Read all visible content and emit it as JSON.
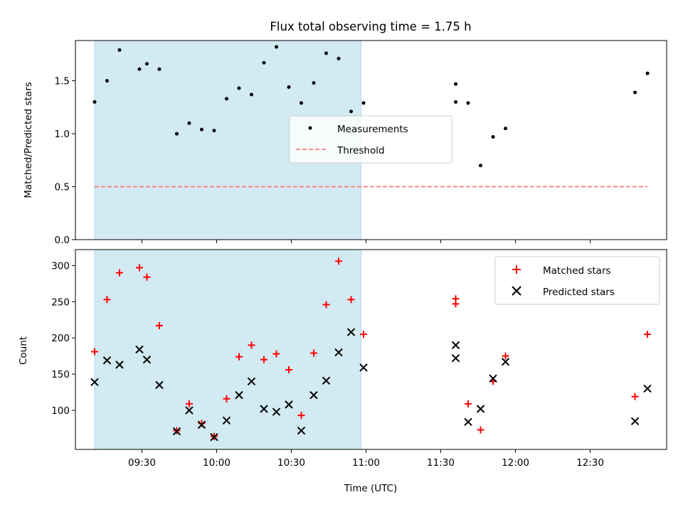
{
  "chart_data": {
    "title": "Flux total observing time = 1.75 h",
    "xlabel": "Time (UTC)",
    "x_ticks": [
      "09:30",
      "10:00",
      "10:30",
      "11:00",
      "11:30",
      "12:00",
      "12:30"
    ],
    "x_units": "minutes since 09:00 UTC (tick 09:30 = 30)",
    "shaded_interval": [
      "09:11",
      "10:58"
    ],
    "shade_color": "#add8e6",
    "charts": [
      {
        "type": "scatter",
        "ylabel": "Matched/Predicted stars",
        "ylim": [
          0,
          1.88
        ],
        "y_ticks": [
          "0.0",
          "0.5",
          "1.0",
          "1.5"
        ],
        "legend": {
          "placement": "center",
          "entries": [
            "Measurements",
            "Threshold"
          ]
        },
        "series": [
          {
            "name": "Measurements",
            "marker": "dot",
            "color": "#000000",
            "x": [
              11,
              16,
              21,
              29,
              32,
              37,
              44,
              49,
              54,
              59,
              64,
              69,
              74,
              79,
              84,
              89,
              94,
              99,
              104,
              109,
              114,
              119,
              156,
              156,
              161,
              166,
              171,
              176,
              228,
              233
            ],
            "y": [
              1.3,
              1.5,
              1.79,
              1.61,
              1.66,
              1.61,
              1.0,
              1.1,
              1.04,
              1.03,
              1.33,
              1.43,
              1.37,
              1.67,
              1.82,
              1.44,
              1.29,
              1.48,
              1.76,
              1.71,
              1.21,
              1.29,
              1.47,
              1.3,
              1.29,
              0.7,
              0.97,
              1.05,
              1.39,
              1.57
            ]
          },
          {
            "name": "Threshold",
            "line": "dashed",
            "color": "#ff7777",
            "x": [
              11,
              233
            ],
            "y": [
              0.5,
              0.5
            ]
          }
        ]
      },
      {
        "type": "scatter",
        "ylabel": "Count",
        "ylim": [
          46,
          322
        ],
        "y_ticks": [
          "100",
          "150",
          "200",
          "250",
          "300"
        ],
        "legend": {
          "placement": "top-right",
          "entries": [
            "Matched stars",
            "Predicted stars"
          ]
        },
        "series": [
          {
            "name": "Matched stars",
            "marker": "plus",
            "color": "#ff0000",
            "x": [
              11,
              16,
              21,
              29,
              32,
              37,
              44,
              49,
              54,
              59,
              64,
              69,
              74,
              79,
              84,
              89,
              94,
              99,
              104,
              109,
              114,
              119,
              156,
              156,
              161,
              166,
              171,
              176,
              228,
              233
            ],
            "y": [
              181,
              253,
              290,
              297,
              284,
              217,
              72,
              109,
              82,
              64,
              116,
              174,
              190,
              170,
              178,
              156,
              93,
              179,
              246,
              306,
              253,
              205,
              254,
              247,
              109,
              73,
              140,
              175,
              119,
              205
            ]
          },
          {
            "name": "Predicted stars",
            "marker": "x",
            "color": "#000000",
            "x": [
              11,
              16,
              21,
              29,
              32,
              37,
              44,
              49,
              54,
              59,
              64,
              69,
              74,
              79,
              84,
              89,
              94,
              99,
              104,
              109,
              114,
              119,
              156,
              156,
              161,
              166,
              171,
              176,
              228,
              233
            ],
            "y": [
              139,
              169,
              163,
              184,
              170,
              135,
              71,
              100,
              80,
              63,
              86,
              121,
              140,
              102,
              98,
              108,
              72,
              121,
              141,
              180,
              208,
              159,
              172,
              190,
              84,
              102,
              144,
              167,
              85,
              130
            ]
          }
        ]
      }
    ]
  }
}
